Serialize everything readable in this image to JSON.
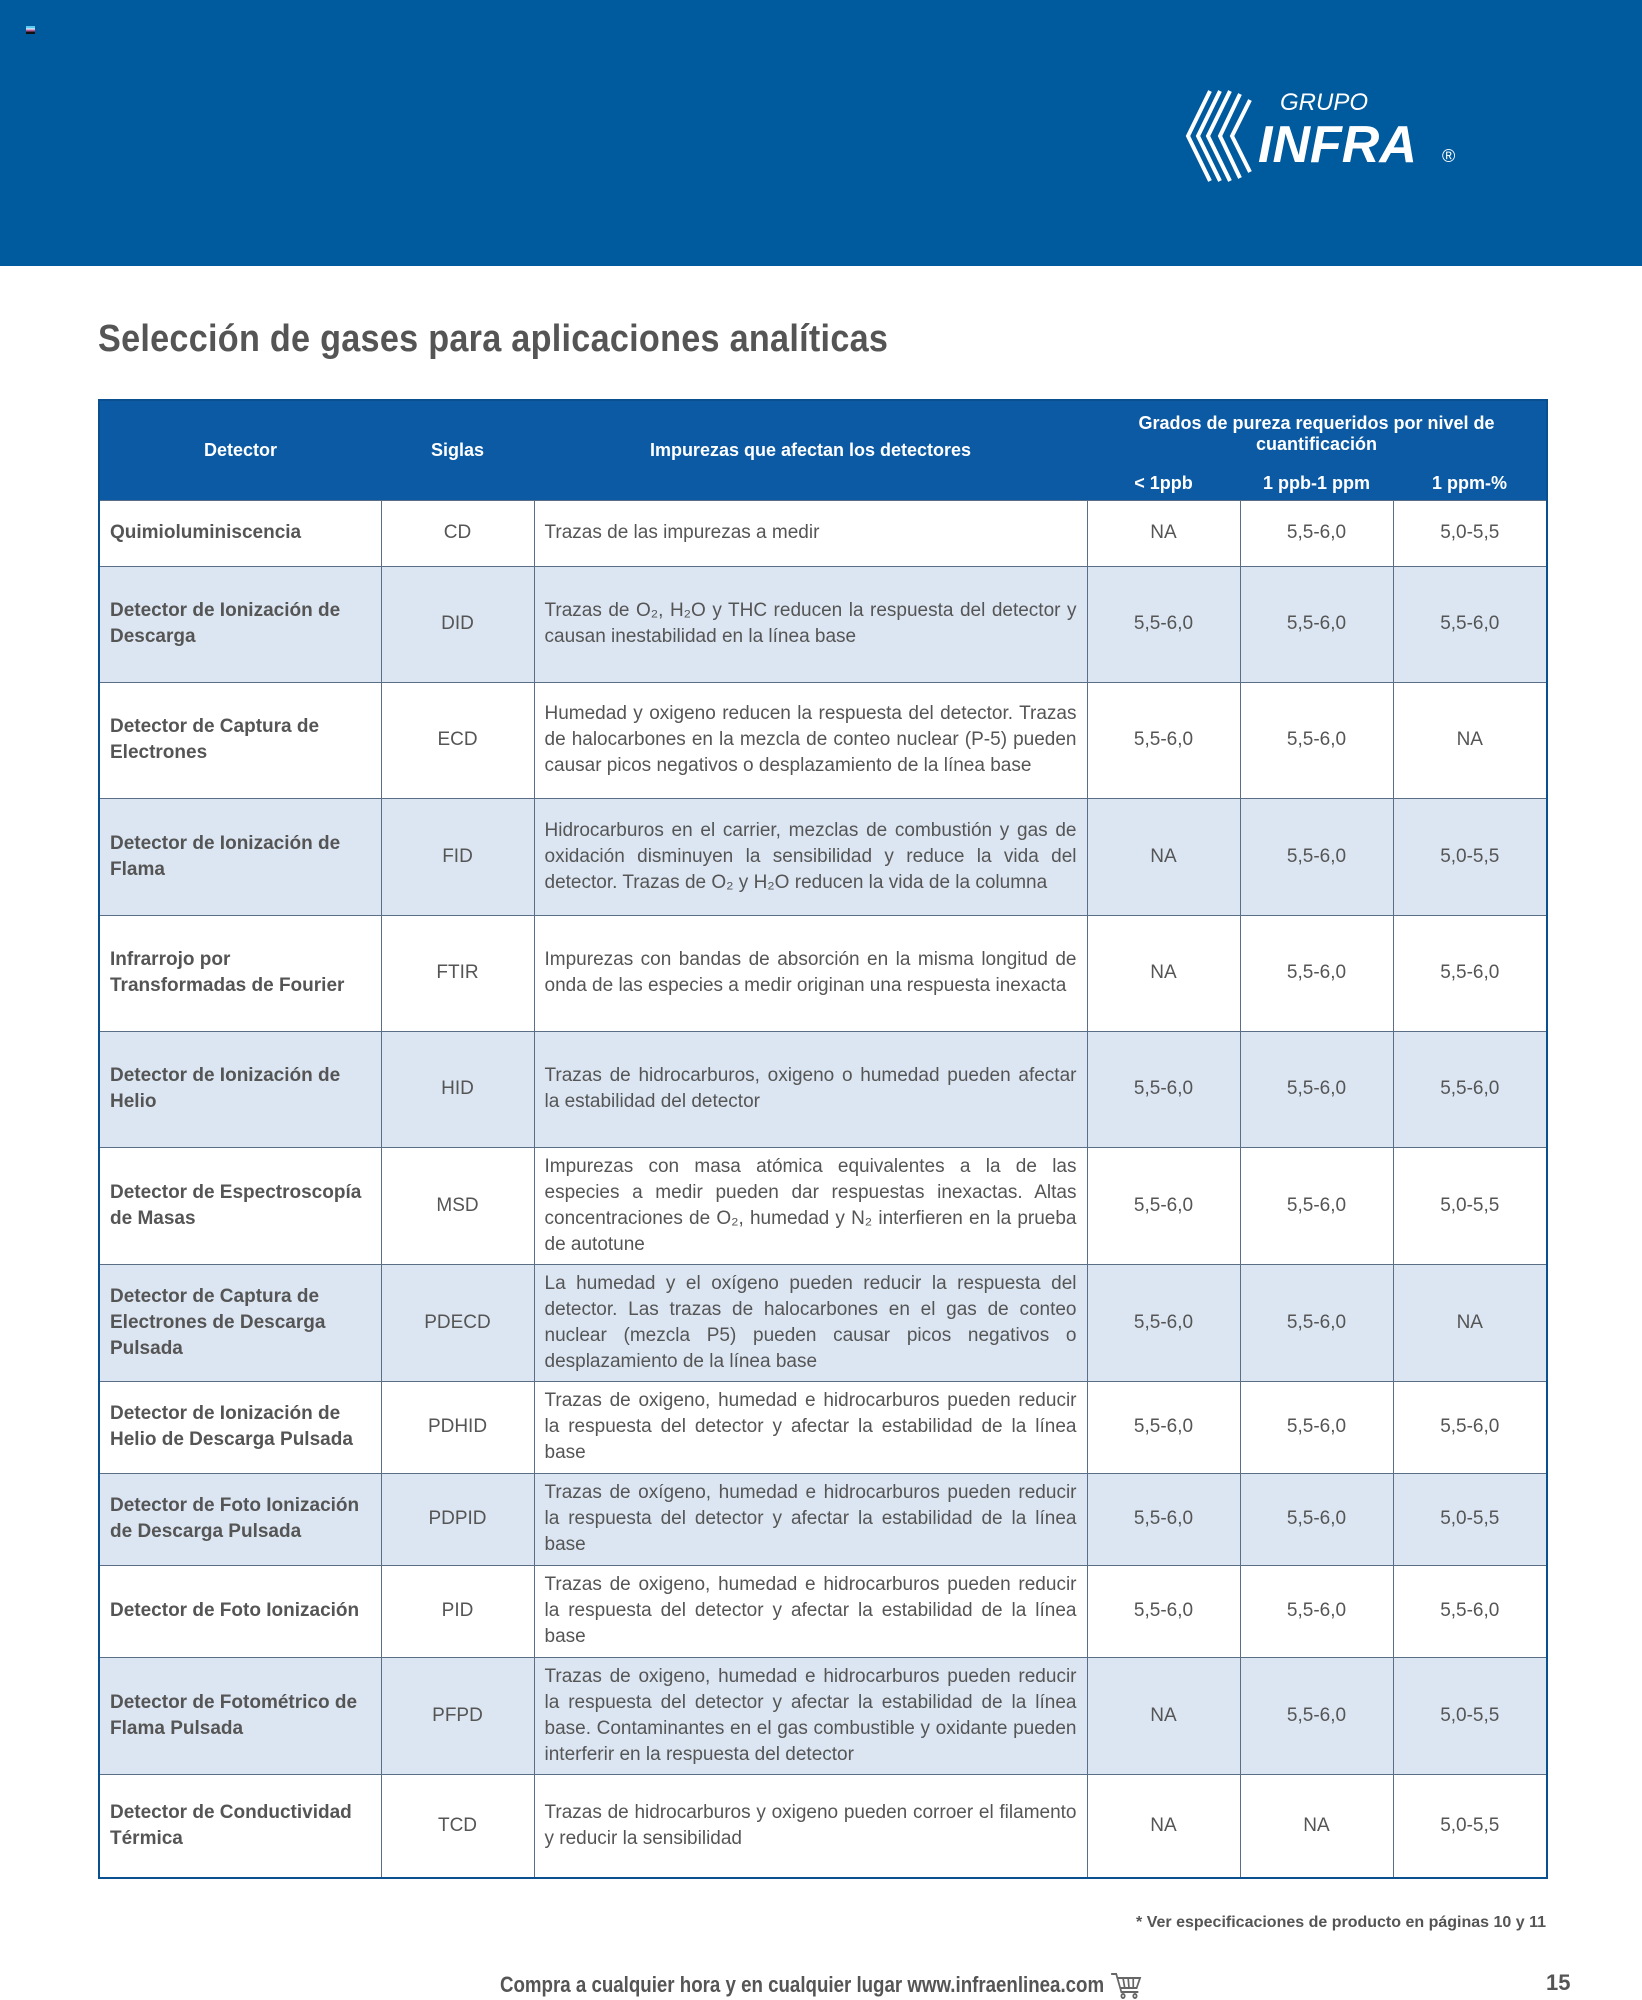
{
  "brand": {
    "line1": "GRUPO",
    "line2": "INFRA",
    "colors": {
      "banner": "#005a9e",
      "header": "#0b5aa3",
      "row_alt": "#dce6f2"
    }
  },
  "title": "Selección de gases para aplicaciones analíticas",
  "table": {
    "headers": {
      "detector": "Detector",
      "siglas": "Siglas",
      "impurezas": "Impurezas que afectan los detectores",
      "grados": "Grados de pureza requeridos por nivel de cuantificación",
      "sub": [
        "< 1ppb",
        "1 ppb-1 ppm",
        "1 ppm-%"
      ]
    },
    "rows": [
      {
        "detector": "Quimioluminiscencia",
        "siglas": "CD",
        "impurezas": "Trazas de las impurezas a medir",
        "g": [
          "NA",
          "5,5-6,0",
          "5,0-5,5"
        ]
      },
      {
        "detector": "Detector de Ionización de Descarga",
        "siglas": "DID",
        "impurezas": "Trazas de O₂, H₂O y THC reducen la respuesta del detector y causan inestabilidad en la línea base",
        "g": [
          "5,5-6,0",
          "5,5-6,0",
          "5,5-6,0"
        ]
      },
      {
        "detector": "Detector de Captura de Electrones",
        "siglas": "ECD",
        "impurezas": "Humedad y oxigeno reducen la respuesta del detector. Trazas de halocarbones en la mezcla de conteo nuclear (P-5) pueden causar picos negativos o desplazamiento de la línea base",
        "g": [
          "5,5-6,0",
          "5,5-6,0",
          "NA"
        ]
      },
      {
        "detector": "Detector de Ionización de Flama",
        "siglas": "FID",
        "impurezas": "Hidrocarburos en el carrier, mezclas de combustión y gas de oxidación disminuyen la sensibilidad y reduce la vida del detector. Trazas de O₂ y H₂O reducen la vida de la columna",
        "g": [
          "NA",
          "5,5-6,0",
          "5,0-5,5"
        ]
      },
      {
        "detector": "Infrarrojo por Transformadas de Fourier",
        "siglas": "FTIR",
        "impurezas": "Impurezas con bandas de absorción en la misma longitud de onda de las especies a medir originan una respuesta inexacta",
        "g": [
          "NA",
          "5,5-6,0",
          "5,5-6,0"
        ]
      },
      {
        "detector": "Detector de Ionización de Helio",
        "siglas": "HID",
        "impurezas": "Trazas de hidrocarburos, oxigeno o humedad pueden afectar la estabilidad del detector",
        "g": [
          "5,5-6,0",
          "5,5-6,0",
          "5,5-6,0"
        ]
      },
      {
        "detector": "Detector de Espectroscopía de Masas",
        "siglas": "MSD",
        "impurezas": "Impurezas con masa atómica equivalentes a la de las especies a medir pueden dar respuestas inexactas. Altas concentraciones de O₂, humedad y N₂ interfieren en la prueba de autotune",
        "g": [
          "5,5-6,0",
          "5,5-6,0",
          "5,0-5,5"
        ]
      },
      {
        "detector": "Detector de Captura de Electrones de Descarga Pulsada",
        "siglas": "PDECD",
        "impurezas": "La humedad y el oxígeno pueden reducir la respuesta del detector. Las trazas de halocarbones en el gas de conteo nuclear (mezcla P5) pueden causar picos negativos o desplazamiento de la línea base",
        "g": [
          "5,5-6,0",
          "5,5-6,0",
          "NA"
        ]
      },
      {
        "detector": "Detector de Ionización de Helio de Descarga Pulsada",
        "siglas": "PDHID",
        "impurezas": "Trazas de oxigeno, humedad e hidrocarburos pueden reducir la respuesta del detector y afectar la estabilidad de la línea base",
        "g": [
          "5,5-6,0",
          "5,5-6,0",
          "5,5-6,0"
        ]
      },
      {
        "detector": "Detector de Foto Ionización de Descarga Pulsada",
        "siglas": "PDPID",
        "impurezas": "Trazas de oxígeno, humedad e hidrocarburos pueden reducir la respuesta del detector y afectar la estabilidad de la línea base",
        "g": [
          "5,5-6,0",
          "5,5-6,0",
          "5,0-5,5"
        ]
      },
      {
        "detector": "Detector de Foto Ionización",
        "siglas": "PID",
        "impurezas": "Trazas de oxigeno, humedad e hidrocarburos pueden reducir la respuesta del detector y afectar la estabilidad de la línea base",
        "g": [
          "5,5-6,0",
          "5,5-6,0",
          "5,5-6,0"
        ]
      },
      {
        "detector": "Detector de Fotométrico de Flama Pulsada",
        "siglas": "PFPD",
        "impurezas": "Trazas de oxigeno, humedad e hidrocarburos pueden reducir la respuesta del detector y afectar la estabilidad de la línea base. Contaminantes en el gas combustible y oxidante pueden interferir en la respuesta del detector",
        "g": [
          "NA",
          "5,5-6,0",
          "5,0-5,5"
        ]
      },
      {
        "detector": "Detector de Conductividad Térmica",
        "siglas": "TCD",
        "impurezas": "Trazas de hidrocarburos y oxigeno pueden corroer el filamento y reducir la sensibilidad",
        "g": [
          "NA",
          "NA",
          "5,0-5,5"
        ]
      }
    ]
  },
  "footnote": "* Ver especificaciones de producto en páginas 10 y 11",
  "footer": {
    "text": "Compra a cualquier hora y en cualquier lugar www.infraenlinea.com",
    "icon": "shopping-cart-icon",
    "page": "15"
  }
}
